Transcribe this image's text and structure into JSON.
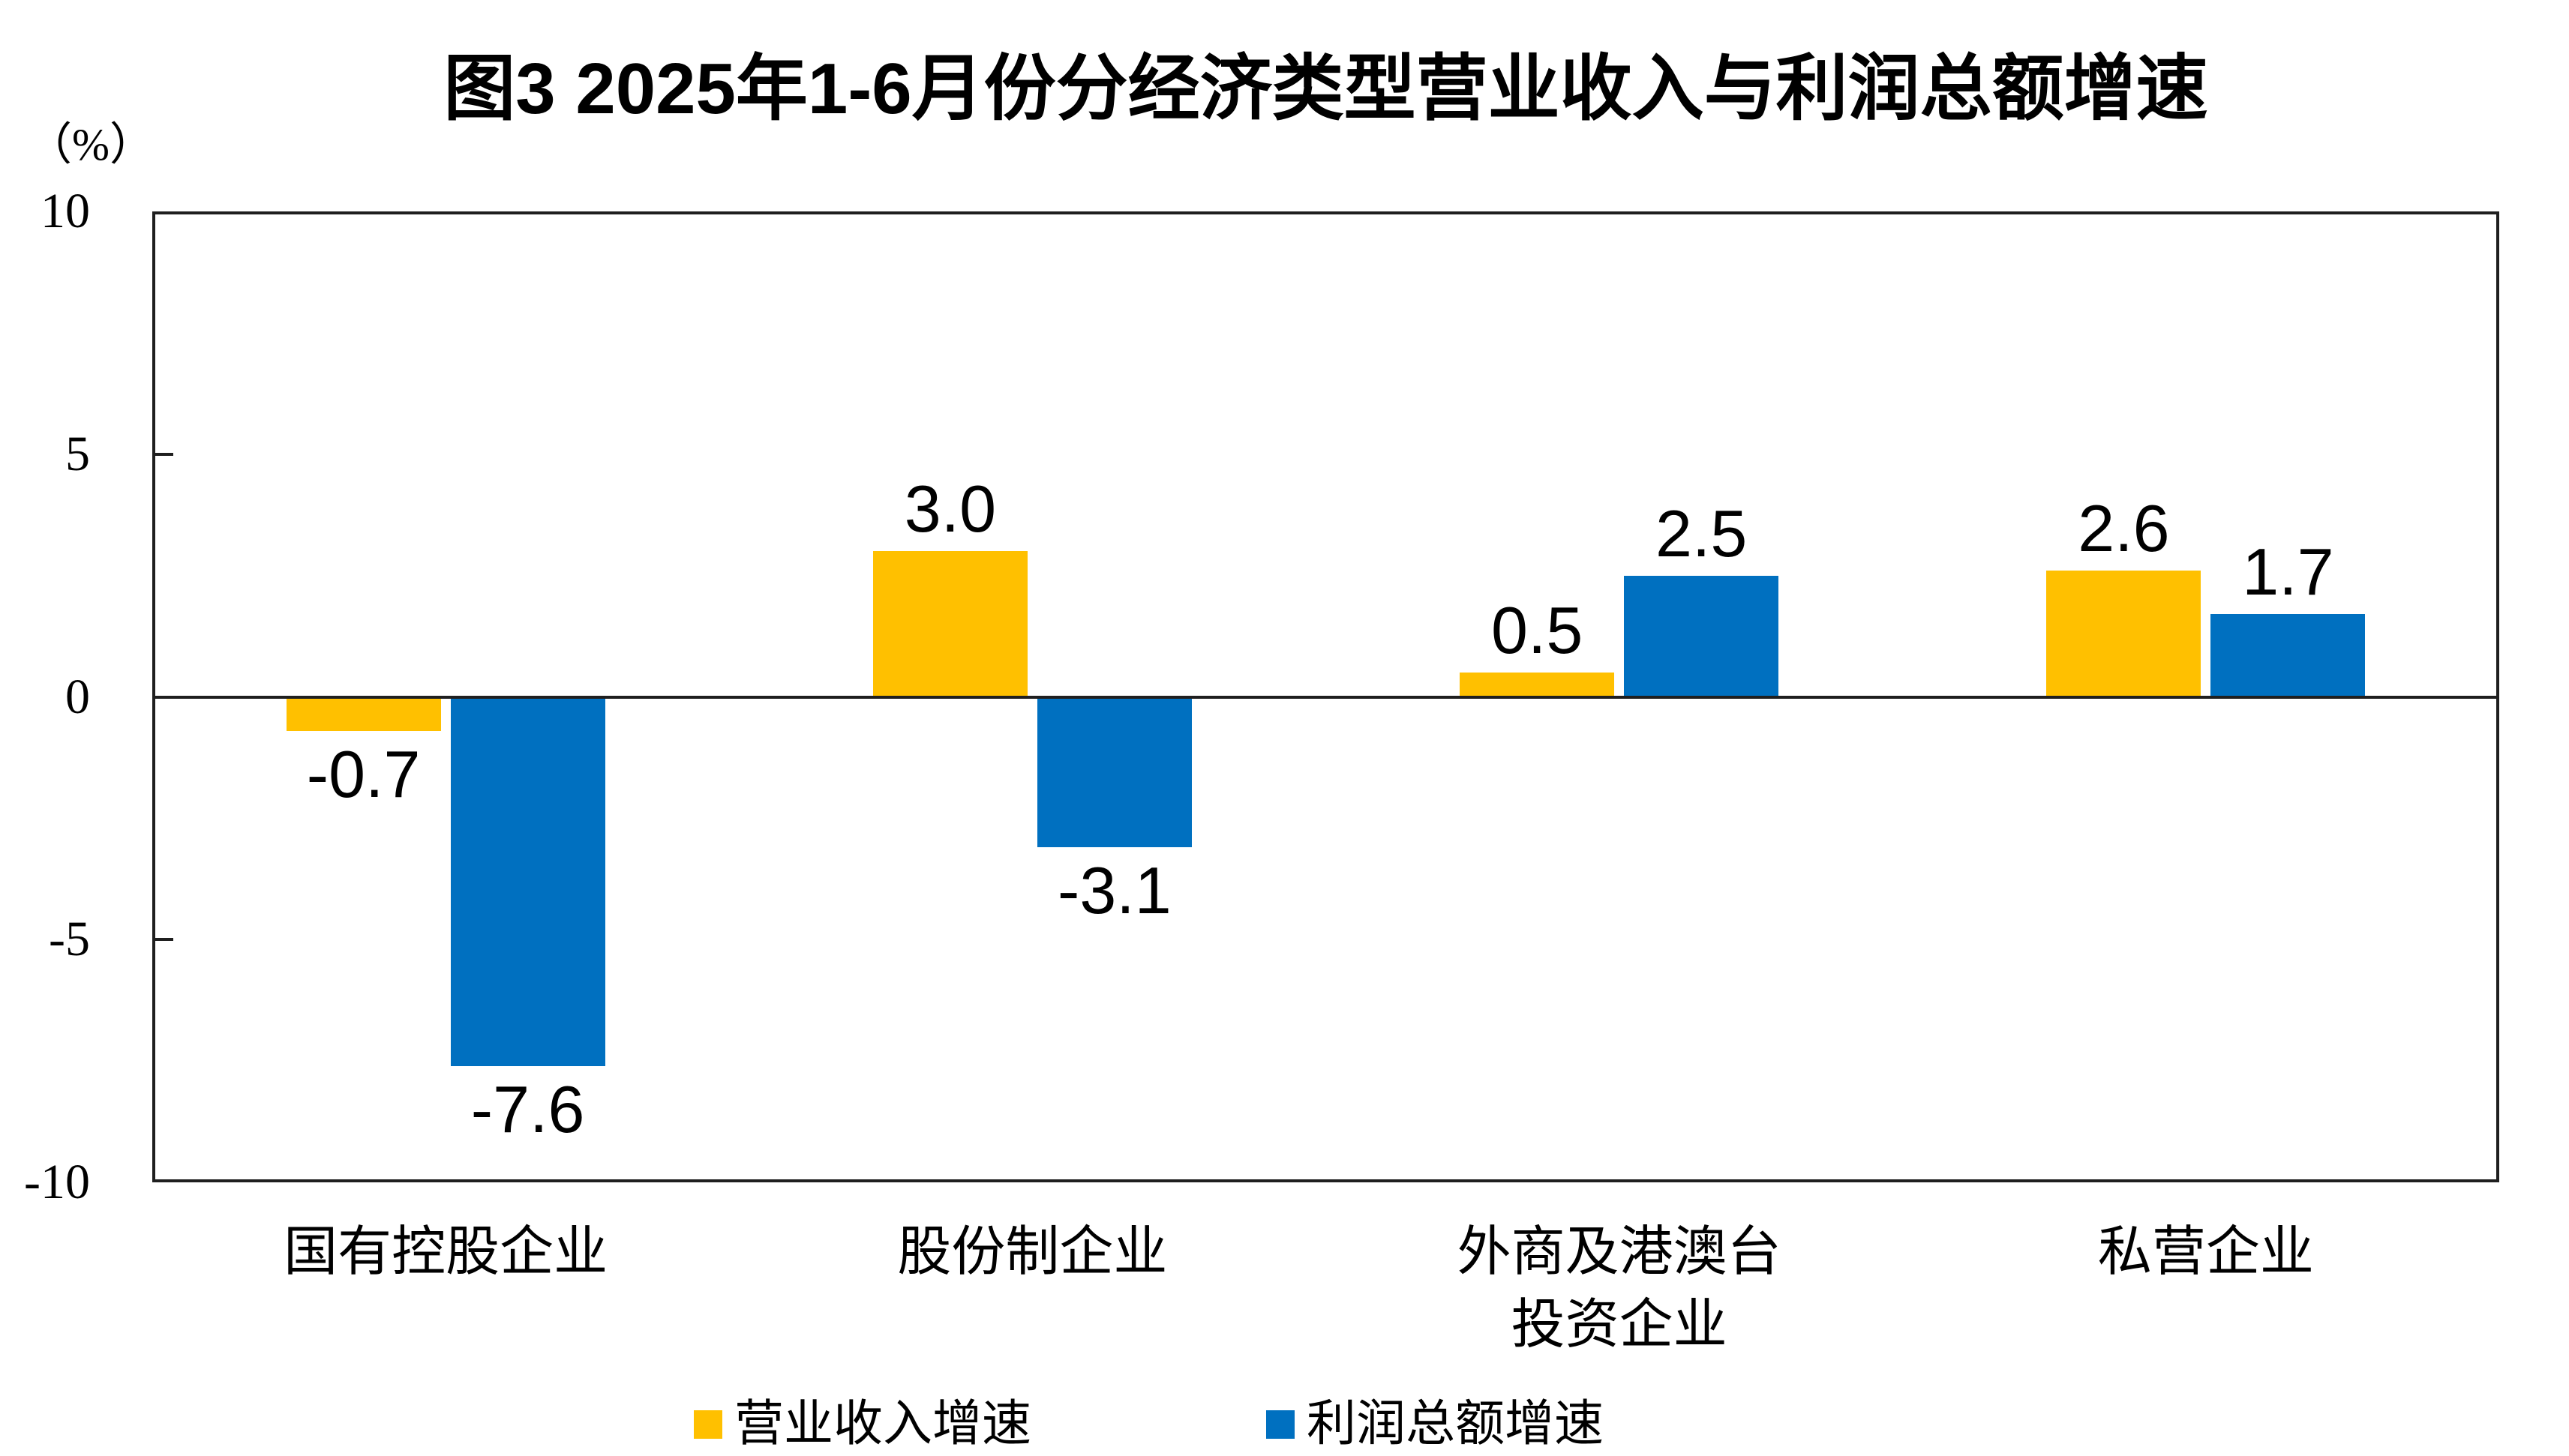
{
  "chart_data": {
    "type": "bar",
    "title": "图3 2025年1-6月份分经济类型营业收入与利润总额增速",
    "unit_label": "（%）",
    "categories": [
      "国有控股企业",
      "股份制企业",
      "外商及港澳台\n投资企业",
      "私营企业"
    ],
    "series": [
      {
        "name": "营业收入增速",
        "color": "#FFC000",
        "values": [
          -0.7,
          3.0,
          0.5,
          2.6
        ],
        "labels": [
          "-0.7",
          "3.0",
          "0.5",
          "2.6"
        ]
      },
      {
        "name": "利润总额增速",
        "color": "#0070C0",
        "values": [
          -7.6,
          -3.1,
          2.5,
          1.7
        ],
        "labels": [
          "-7.6",
          "-3.1",
          "2.5",
          "1.7"
        ]
      }
    ],
    "y_axis": {
      "ticks": [
        10,
        5,
        0,
        -5,
        -10
      ],
      "ylim": [
        -10,
        10
      ]
    },
    "grid": "zero-line-only",
    "legend_position": "bottom"
  },
  "colors": {
    "axis": "#1f1f1f",
    "text": "#000000",
    "background": "#ffffff"
  }
}
